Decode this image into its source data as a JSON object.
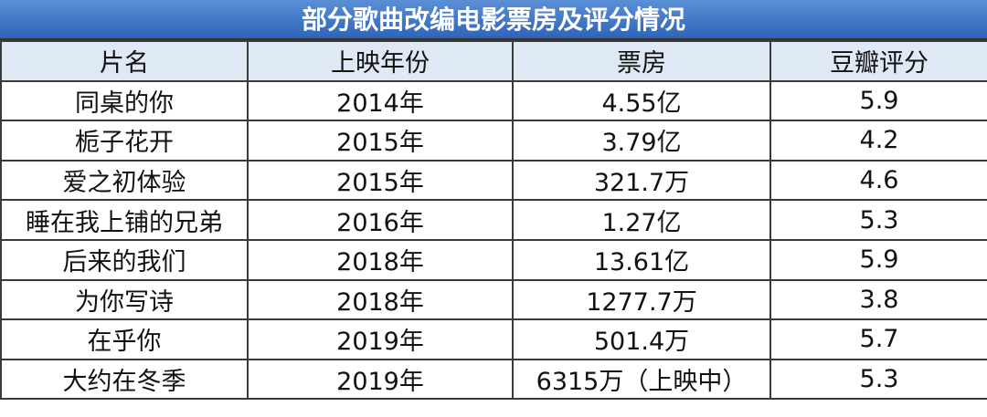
{
  "table": {
    "title": "部分歌曲改编电影票房及评分情况",
    "header": [
      "片名",
      "上映年份",
      "票房",
      "豆瓣评分"
    ],
    "rows": [
      [
        "同桌的你",
        "2014年",
        "4.55亿",
        "5.9"
      ],
      [
        "栀子花开",
        "2015年",
        "3.79亿",
        "4.2"
      ],
      [
        "爱之初体验",
        "2015年",
        "321.7万",
        "4.6"
      ],
      [
        "睡在我上铺的兄弟",
        "2016年",
        "1.27亿",
        "5.3"
      ],
      [
        "后来的我们",
        "2018年",
        "13.61亿",
        "5.9"
      ],
      [
        "为你写诗",
        "2018年",
        "1277.7万",
        "3.8"
      ],
      [
        "在乎你",
        "2019年",
        "501.4万",
        "5.7"
      ],
      [
        "大约在冬季",
        "2019年",
        "6315万（上映中）",
        "5.3"
      ]
    ]
  }
}
